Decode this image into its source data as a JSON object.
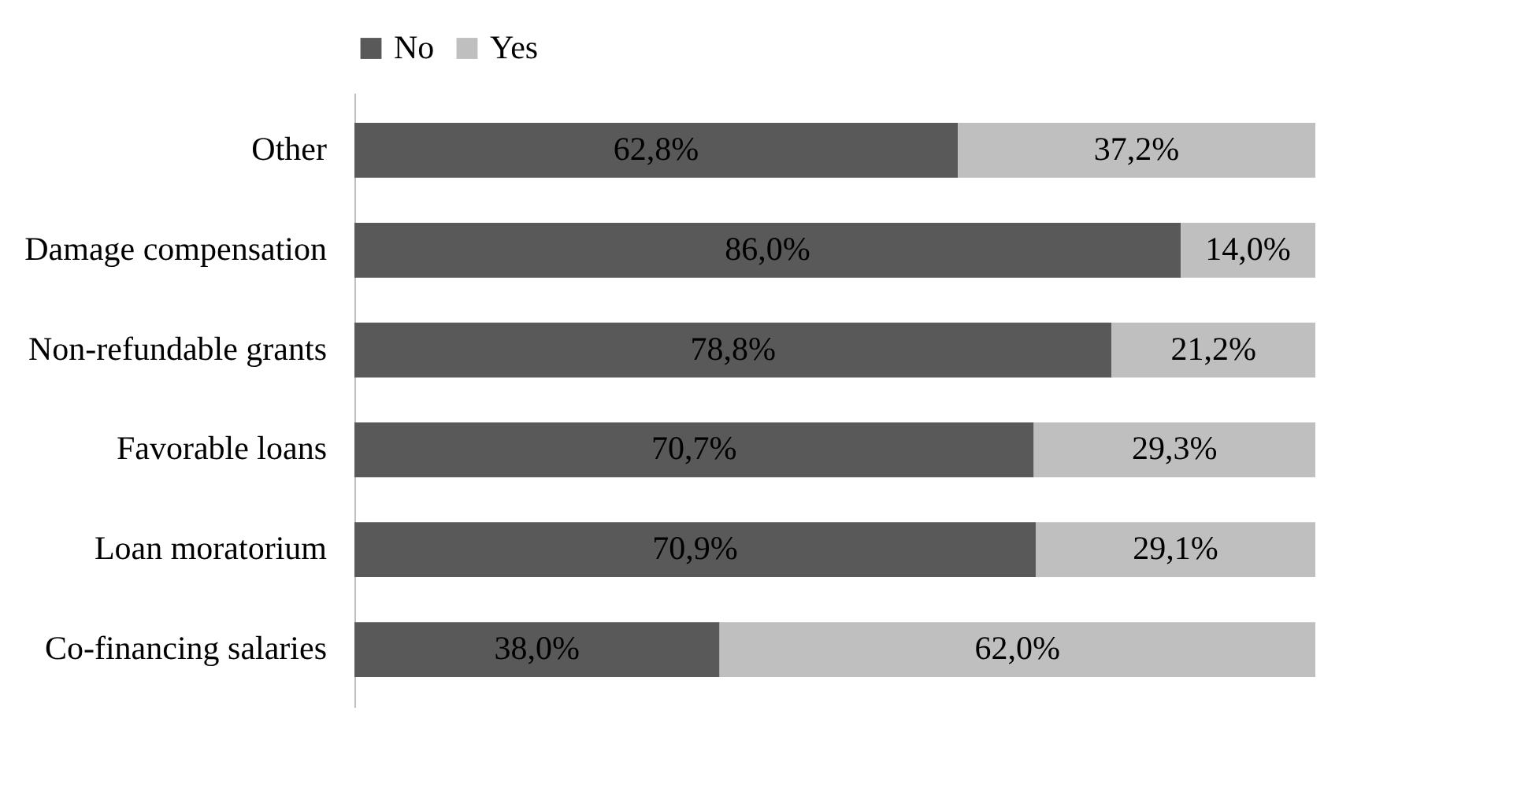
{
  "chart_data": {
    "type": "bar",
    "orientation": "horizontal",
    "stacked": true,
    "categories": [
      "Other",
      "Damage compensation",
      "Non-refundable grants",
      "Favorable loans",
      "Loan moratorium",
      "Co-financing salaries"
    ],
    "series": [
      {
        "name": "No",
        "color": "#595959",
        "values": [
          62.8,
          86.0,
          78.8,
          70.7,
          70.9,
          38.0
        ],
        "value_labels": [
          "62,8%",
          "86,0%",
          "78,8%",
          "70,7%",
          "70,9%",
          "38,0%"
        ]
      },
      {
        "name": "Yes",
        "color": "#bfbfbf",
        "values": [
          37.2,
          14.0,
          21.2,
          29.3,
          29.1,
          62.0
        ],
        "value_labels": [
          "37,2%",
          "14,0%",
          "21,2%",
          "29,3%",
          "29,1%",
          "62,0%"
        ]
      }
    ],
    "xlim": [
      0,
      100
    ],
    "tick_labels": "y",
    "legend": "top"
  }
}
